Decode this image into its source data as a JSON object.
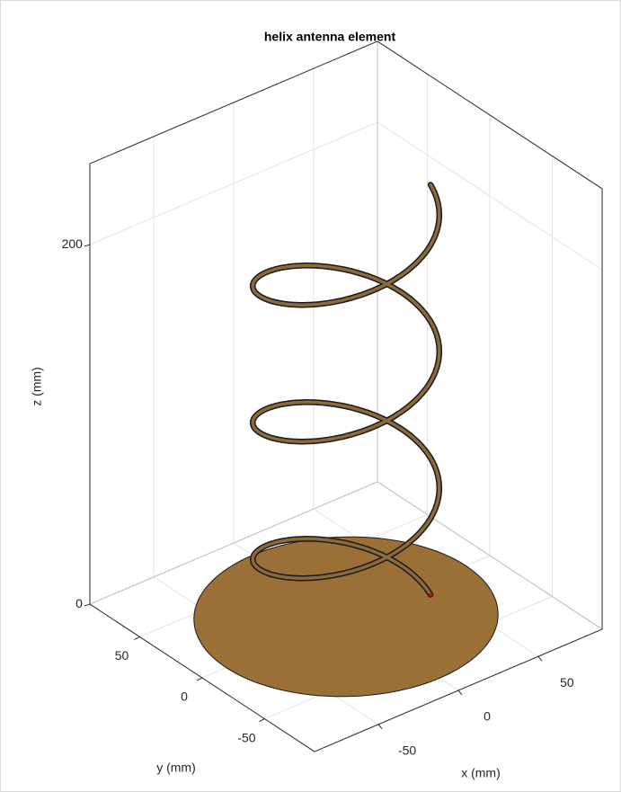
{
  "chart_data": {
    "type": "helix3d",
    "title": "helix antenna element",
    "x_label": "x (mm)",
    "y_label": "y (mm)",
    "z_label": "z (mm)",
    "xlim": [
      -90,
      90
    ],
    "ylim": [
      -90,
      90
    ],
    "zlim": [
      0,
      245
    ],
    "xticks": [
      -50,
      0,
      50
    ],
    "yticks": [
      -50,
      0,
      50
    ],
    "zticks": [
      0,
      200
    ],
    "grid": true,
    "helix": {
      "radius": 46,
      "turns": 3,
      "pitch": 76,
      "start_angle": -13,
      "color": "#8c6a3c"
    },
    "ground_plane": {
      "radius": 75,
      "color": "#9a7036"
    }
  }
}
